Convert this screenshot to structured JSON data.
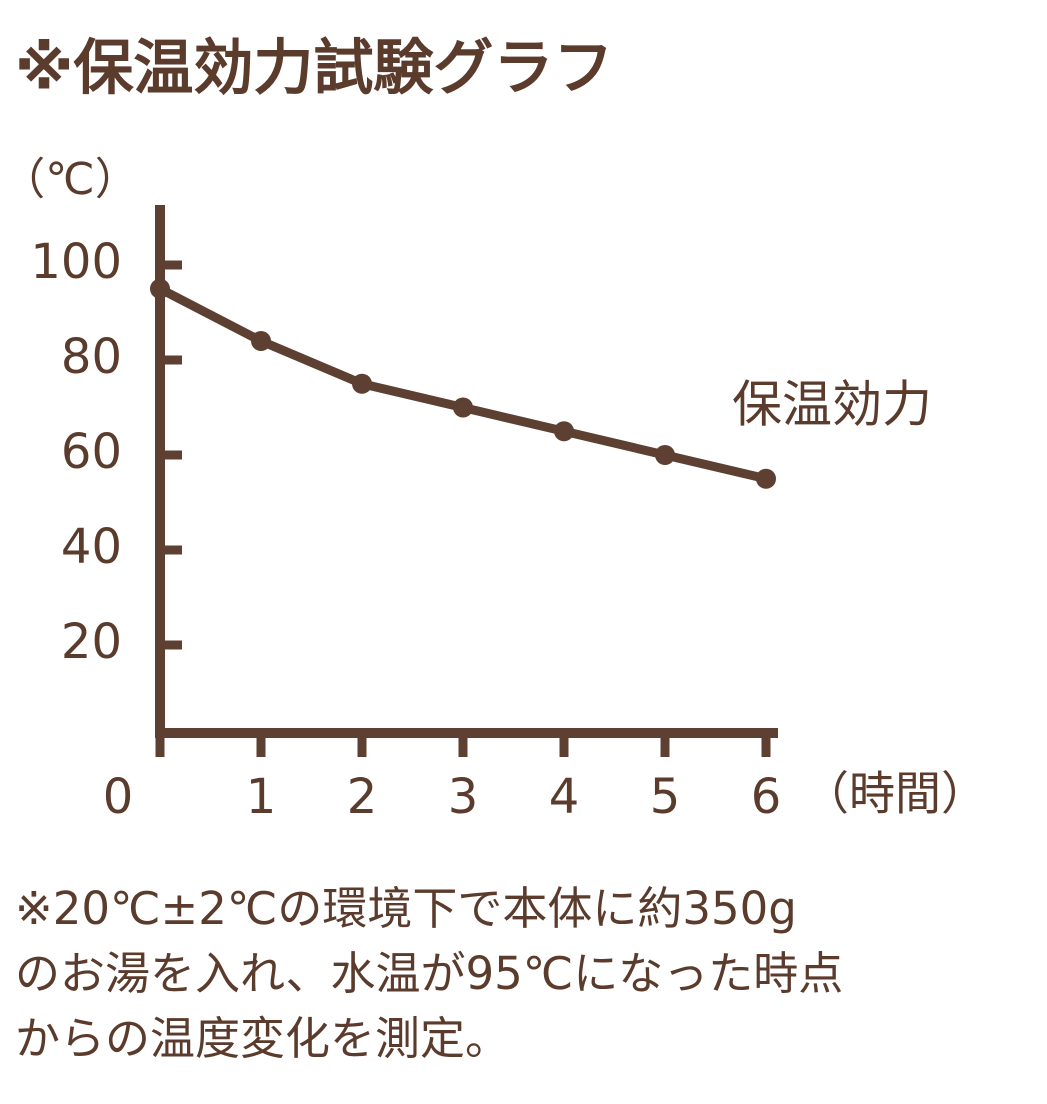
{
  "chart_data": {
    "type": "line",
    "title": "※保温効力試験グラフ",
    "y_label": "（℃）",
    "x_label": "（時間）",
    "x": [
      0,
      1,
      2,
      3,
      4,
      5,
      6
    ],
    "series": [
      {
        "name": "保温効力",
        "color": "#5e4032",
        "values": [
          95,
          84,
          75,
          70,
          65,
          60,
          55
        ]
      }
    ],
    "xlim": [
      0,
      6
    ],
    "xticks": [
      0,
      1,
      2,
      3,
      4,
      5,
      6
    ],
    "ylim": [
      0,
      112
    ],
    "yticks": [
      20,
      40,
      60,
      80,
      100
    ],
    "grid": false,
    "note": [
      "※20℃±2℃の環境下で本体に約350g",
      "のお湯を入れ、水温が95℃になった時点",
      "からの温度変化を測定。"
    ]
  }
}
